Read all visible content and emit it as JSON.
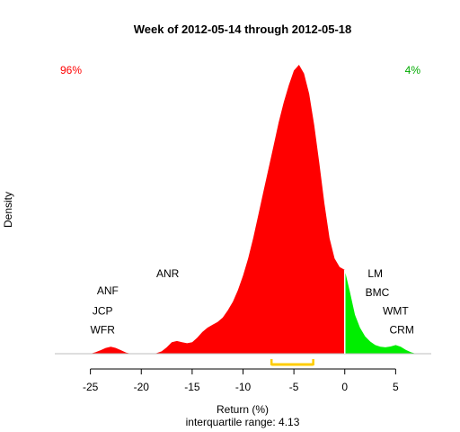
{
  "chart_data": {
    "type": "area",
    "title": "Week of 2012-05-14 through 2012-05-18",
    "xlabel": "Return (%)",
    "ylabel": "Density",
    "subtitle": "interquartile range: 4.13",
    "xlim": [
      -28.5,
      8.5
    ],
    "ylim": [
      0,
      1.0
    ],
    "xticks": [
      -25,
      -20,
      -15,
      -10,
      -5,
      0,
      5
    ],
    "grid": false,
    "negative_share": "96%",
    "positive_share": "4%",
    "colors": {
      "negative": "#ff0000",
      "positive": "#00ee00",
      "iqr": "#ffcc00",
      "baseline": "#bebebe"
    },
    "series": [
      {
        "x": [
          -25.0,
          -24.5,
          -24.0,
          -23.5,
          -23.0,
          -22.5,
          -22.0,
          -21.5,
          -21.0,
          -20.5,
          -20.0,
          -19.5,
          -19.0,
          -18.5,
          -18.0,
          -17.5,
          -17.0,
          -16.5,
          -16.0,
          -15.5,
          -15.0,
          -14.5,
          -14.0,
          -13.5,
          -13.0,
          -12.5,
          -12.0,
          -11.5,
          -11.0,
          -10.5,
          -10.0,
          -9.5,
          -9.0,
          -8.5,
          -8.0,
          -7.5,
          -7.0,
          -6.5,
          -6.0,
          -5.5,
          -5.0,
          -4.5,
          -4.0,
          -3.5,
          -3.0,
          -2.5,
          -2.0,
          -1.5,
          -1.0,
          -0.5,
          0.0,
          0.5,
          1.0,
          1.5,
          2.0,
          2.5,
          3.0,
          3.5,
          4.0,
          4.5,
          5.0,
          5.5,
          6.0,
          6.5,
          7.0
        ],
        "y": [
          0.0,
          0.005,
          0.012,
          0.02,
          0.024,
          0.02,
          0.012,
          0.004,
          0.0,
          0.0,
          0.0,
          0.0,
          0.0,
          0.002,
          0.008,
          0.022,
          0.04,
          0.044,
          0.04,
          0.036,
          0.04,
          0.055,
          0.075,
          0.09,
          0.1,
          0.11,
          0.125,
          0.15,
          0.18,
          0.22,
          0.27,
          0.33,
          0.4,
          0.48,
          0.56,
          0.64,
          0.72,
          0.8,
          0.87,
          0.93,
          0.98,
          1.0,
          0.97,
          0.9,
          0.79,
          0.66,
          0.52,
          0.4,
          0.33,
          0.3,
          0.29,
          0.215,
          0.135,
          0.09,
          0.06,
          0.042,
          0.03,
          0.024,
          0.022,
          0.025,
          0.03,
          0.024,
          0.013,
          0.005,
          0.0
        ]
      }
    ],
    "interquartile_range": [
      -7.2,
      -3.1
    ],
    "annotations": [
      {
        "text": "ANF",
        "x": -23.3,
        "y": 0.205
      },
      {
        "text": "JCP",
        "x": -23.8,
        "y": 0.135
      },
      {
        "text": "WFR",
        "x": -23.8,
        "y": 0.07
      },
      {
        "text": "ANR",
        "x": -17.4,
        "y": 0.265
      },
      {
        "text": "LM",
        "x": 3.0,
        "y": 0.265
      },
      {
        "text": "BMC",
        "x": 3.2,
        "y": 0.2
      },
      {
        "text": "WMT",
        "x": 5.0,
        "y": 0.135
      },
      {
        "text": "CRM",
        "x": 5.6,
        "y": 0.07
      }
    ]
  }
}
